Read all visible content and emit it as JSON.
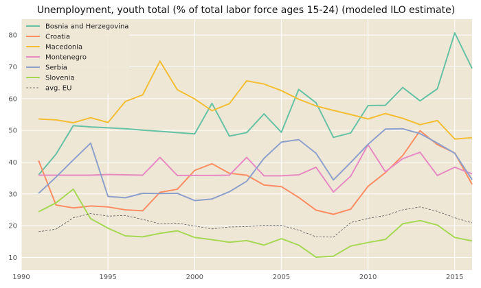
{
  "chart_data": {
    "type": "line",
    "title": "Unemployment, youth total (% of total labor force ages 15-24) (modeled ILO estimate)",
    "xlabel": "",
    "ylabel": "",
    "xlim": [
      1990,
      2016
    ],
    "ylim": [
      6,
      85
    ],
    "xticks": [
      1990,
      1995,
      2000,
      2005,
      2010,
      2015
    ],
    "yticks": [
      10,
      20,
      30,
      40,
      50,
      60,
      70,
      80
    ],
    "grid": true,
    "background": "#efe7d6",
    "legend_position": "top-left",
    "x": [
      1991,
      1992,
      1993,
      1994,
      1995,
      1996,
      1997,
      1998,
      1999,
      2000,
      2001,
      2002,
      2003,
      2004,
      2005,
      2006,
      2007,
      2008,
      2009,
      2010,
      2011,
      2012,
      2013,
      2014,
      2015,
      2016
    ],
    "series": [
      {
        "name": "Bosnia and Herzegovina",
        "color": "#66c2a5",
        "dashed": false,
        "values": [
          36.0,
          42.5,
          51.5,
          51.1,
          50.8,
          50.5,
          50.1,
          49.7,
          49.3,
          48.9,
          58.5,
          48.2,
          49.3,
          55.2,
          49.4,
          62.9,
          58.7,
          47.8,
          49.2,
          57.8,
          57.9,
          63.5,
          59.3,
          63.1,
          80.7,
          69.5
        ]
      },
      {
        "name": "Croatia",
        "color": "#fc8d62",
        "dashed": false,
        "values": [
          40.5,
          26.5,
          25.6,
          26.2,
          25.9,
          25.0,
          24.7,
          30.5,
          31.5,
          37.4,
          39.5,
          36.5,
          35.9,
          32.8,
          32.3,
          28.9,
          24.9,
          23.6,
          25.2,
          32.4,
          36.7,
          42.1,
          49.9,
          45.5,
          42.9,
          33.0
        ]
      },
      {
        "name": "Macedonia",
        "color": "#f3be33",
        "dashed": false,
        "values": [
          53.6,
          53.3,
          52.4,
          54.0,
          52.5,
          59.1,
          61.2,
          71.8,
          62.8,
          59.9,
          56.2,
          58.4,
          65.6,
          64.6,
          62.5,
          59.8,
          57.7,
          56.3,
          55.0,
          53.6,
          55.3,
          53.8,
          51.8,
          53.1,
          47.3,
          47.7
        ]
      },
      {
        "name": "Montenegro",
        "color": "#e78ac3",
        "dashed": false,
        "values": [
          35.9,
          35.9,
          35.9,
          35.9,
          36.1,
          36.0,
          35.9,
          41.5,
          35.8,
          35.8,
          35.8,
          35.9,
          41.5,
          35.7,
          35.7,
          36.0,
          38.4,
          30.6,
          35.6,
          45.5,
          37.0,
          41.1,
          43.1,
          35.8,
          38.4,
          36.3
        ]
      },
      {
        "name": "Serbia",
        "color": "#8da0cb",
        "dashed": false,
        "values": [
          30.2,
          35.3,
          40.7,
          46.0,
          29.2,
          28.8,
          30.2,
          30.1,
          30.2,
          27.9,
          28.4,
          30.7,
          34.0,
          41.2,
          46.3,
          47.1,
          42.8,
          34.4,
          39.9,
          45.6,
          50.4,
          50.5,
          49.0,
          46.0,
          42.8,
          34.5
        ]
      },
      {
        "name": "Slovenia",
        "color": "#a6d854",
        "dashed": false,
        "values": [
          24.4,
          27.2,
          31.5,
          22.2,
          19.2,
          16.8,
          16.5,
          17.6,
          18.4,
          16.3,
          15.6,
          14.8,
          15.3,
          13.9,
          15.9,
          13.9,
          10.1,
          10.4,
          13.6,
          14.7,
          15.7,
          20.6,
          21.6,
          20.2,
          16.3,
          15.2
        ]
      },
      {
        "name": "avg. EU",
        "color": "#555555",
        "dashed": true,
        "values": [
          18.1,
          18.9,
          22.5,
          23.8,
          23.0,
          23.2,
          22.0,
          20.6,
          20.8,
          19.9,
          19.0,
          19.6,
          19.7,
          20.1,
          20.1,
          18.6,
          16.5,
          16.4,
          21.0,
          22.3,
          23.2,
          25.0,
          25.9,
          24.5,
          22.5,
          20.9
        ]
      }
    ]
  }
}
